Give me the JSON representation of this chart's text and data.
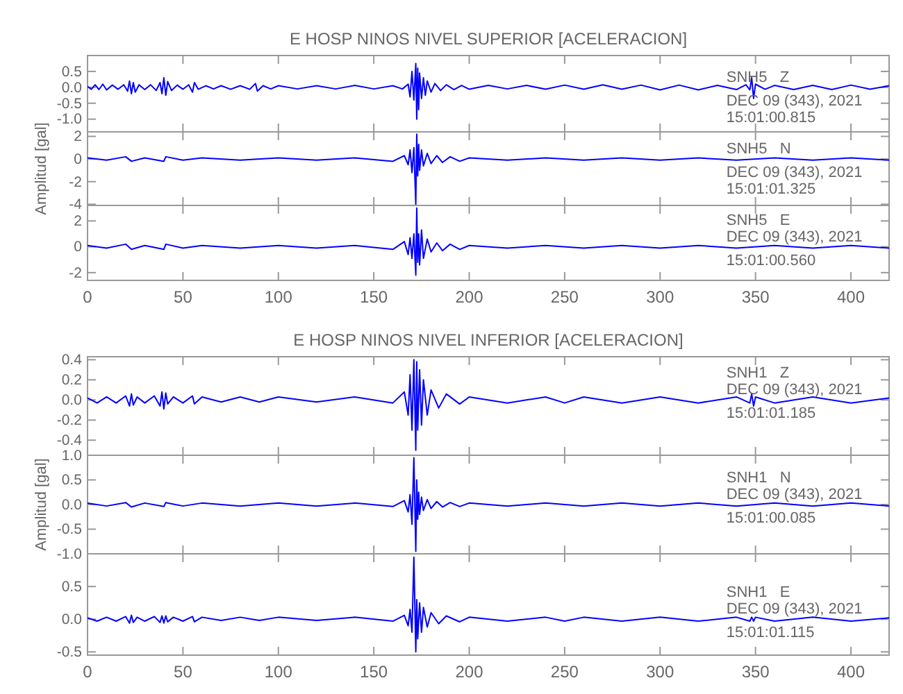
{
  "chart_data": [
    {
      "type": "line",
      "title": "E HOSP NINOS NIVEL SUPERIOR [ACELERACION]",
      "color": "#0000ff",
      "xlim": [
        0,
        420
      ],
      "xticks": [
        0,
        50,
        100,
        150,
        200,
        250,
        300,
        350,
        400
      ],
      "ylim": [
        -1.4,
        1.0
      ],
      "yticks": [
        {
          "value": -1.0,
          "label": "-1.0"
        },
        -0.5,
        {
          "value": 0,
          "label": "0.0"
        },
        0.5
      ],
      "tick_labels": "y",
      "annotations": [
        "SNH5   Z",
        "DEC 09 (343), 2021",
        "15:01:00.815"
      ],
      "x": [
        0,
        2,
        4,
        6,
        8,
        10,
        13,
        16,
        19,
        21,
        22,
        23,
        24,
        25,
        27,
        30,
        33,
        36,
        38,
        39,
        40,
        41,
        42,
        44,
        47,
        50,
        53,
        55,
        56,
        58,
        62,
        66,
        70,
        75,
        80,
        85,
        88,
        89,
        92,
        96,
        100,
        110,
        120,
        130,
        140,
        150,
        160,
        165,
        168,
        169,
        170,
        171,
        172,
        172.5,
        173,
        173.5,
        174,
        175,
        176,
        177,
        178,
        180,
        182,
        185,
        188,
        192,
        196,
        200,
        210,
        220,
        230,
        240,
        250,
        260,
        270,
        280,
        290,
        300,
        310,
        320,
        330,
        340,
        345,
        347,
        348,
        349,
        350,
        355,
        360,
        370,
        380,
        390,
        400,
        410,
        420
      ],
      "values": [
        0.03,
        -0.06,
        0.08,
        -0.07,
        0.1,
        -0.08,
        0.07,
        -0.06,
        0.08,
        -0.12,
        0.2,
        -0.2,
        0.15,
        -0.15,
        0.08,
        -0.07,
        0.08,
        -0.1,
        0.15,
        -0.2,
        0.3,
        -0.25,
        0.18,
        -0.1,
        0.07,
        -0.06,
        0.08,
        -0.15,
        0.15,
        -0.06,
        0.05,
        -0.05,
        0.05,
        -0.06,
        0.05,
        -0.06,
        0.12,
        -0.12,
        0.05,
        -0.05,
        0.05,
        -0.05,
        0.05,
        -0.05,
        0.06,
        -0.05,
        0.05,
        -0.05,
        0.1,
        -0.3,
        0.5,
        -0.4,
        0.75,
        -1.0,
        0.6,
        -0.7,
        0.45,
        -0.35,
        0.3,
        -0.25,
        0.2,
        -0.15,
        0.12,
        -0.1,
        0.08,
        -0.07,
        0.06,
        -0.06,
        0.06,
        -0.05,
        0.06,
        -0.06,
        0.07,
        -0.06,
        0.08,
        -0.06,
        0.07,
        -0.08,
        0.07,
        -0.08,
        0.06,
        -0.07,
        0.08,
        -0.08,
        0.3,
        -0.35,
        0.1,
        -0.06,
        0.06,
        -0.07,
        0.06,
        -0.07,
        0.07,
        -0.06,
        0.05
      ]
    },
    {
      "type": "line",
      "ylabel": "Amplitud [gal]",
      "color": "#0000ff",
      "xlim": [
        0,
        420
      ],
      "xticks": [
        0,
        50,
        100,
        150,
        200,
        250,
        300,
        350,
        400
      ],
      "ylim": [
        -4.1,
        2.4
      ],
      "yticks": [
        -4,
        -2,
        0,
        2
      ],
      "tick_labels": "y",
      "annotations": [
        "SNH5   N",
        "DEC 09 (343), 2021",
        "15:01:01.325"
      ],
      "x": [
        0,
        10,
        20,
        23,
        30,
        40,
        41,
        50,
        60,
        80,
        100,
        120,
        140,
        160,
        166,
        168,
        169,
        170,
        171,
        172,
        172.5,
        173,
        173.5,
        174,
        175,
        176,
        178,
        180,
        183,
        186,
        190,
        195,
        200,
        220,
        240,
        260,
        280,
        300,
        320,
        340,
        360,
        380,
        400,
        420
      ],
      "values": [
        0.1,
        -0.1,
        0.2,
        -0.2,
        0.1,
        -0.2,
        0.2,
        -0.1,
        0.1,
        -0.1,
        0.1,
        -0.1,
        0.1,
        -0.2,
        0.3,
        -0.5,
        0.8,
        -1.2,
        1.0,
        -4.0,
        2.2,
        -1.5,
        1.3,
        -1.0,
        0.8,
        -0.6,
        0.5,
        -0.4,
        0.3,
        -0.3,
        0.2,
        -0.2,
        0.1,
        -0.1,
        0.1,
        -0.1,
        0.1,
        -0.1,
        0.1,
        -0.1,
        0.1,
        -0.1,
        0.1,
        -0.1
      ]
    },
    {
      "type": "line",
      "color": "#0000ff",
      "xlim": [
        0,
        420
      ],
      "xticks": [
        0,
        50,
        100,
        150,
        200,
        250,
        300,
        350,
        400
      ],
      "ylim": [
        -2.6,
        3.2
      ],
      "yticks": [
        -2,
        0,
        2
      ],
      "annotations": [
        "SNH5   E",
        "DEC 09 (343), 2021",
        "15:01:00.560"
      ],
      "x": [
        0,
        10,
        20,
        23,
        30,
        40,
        41,
        50,
        60,
        80,
        100,
        120,
        140,
        160,
        166,
        168,
        169,
        170,
        171,
        172,
        172.5,
        173,
        173.5,
        174,
        175,
        176,
        178,
        180,
        183,
        186,
        190,
        195,
        200,
        220,
        240,
        260,
        280,
        300,
        320,
        340,
        360,
        380,
        400,
        420
      ],
      "values": [
        0.1,
        -0.1,
        0.2,
        -0.2,
        0.1,
        -0.2,
        0.2,
        -0.1,
        0.1,
        -0.1,
        0.1,
        -0.1,
        0.1,
        -0.2,
        0.4,
        -0.6,
        0.7,
        -0.9,
        1.0,
        -2.2,
        3.0,
        -1.2,
        1.0,
        -1.4,
        1.3,
        -0.9,
        0.6,
        -0.4,
        0.3,
        -0.3,
        0.2,
        -0.2,
        0.1,
        -0.1,
        0.1,
        -0.1,
        0.1,
        -0.1,
        0.1,
        -0.1,
        0.1,
        -0.1,
        0.1,
        -0.1
      ]
    },
    {
      "type": "line",
      "title": "E HOSP NINOS NIVEL INFERIOR [ACELERACION]",
      "color": "#0000ff",
      "xlim": [
        0,
        420
      ],
      "xticks": [
        0,
        50,
        100,
        150,
        200,
        250,
        300,
        350,
        400
      ],
      "ylim": [
        -0.55,
        0.43
      ],
      "yticks": [
        -0.4,
        -0.2,
        {
          "value": 0,
          "label": "0.0"
        },
        0.2,
        0.4
      ],
      "tick_labels": "y",
      "annotations": [
        "SNH1   Z",
        "DEC 09 (343), 2021",
        "15:01:01.185"
      ],
      "x": [
        0,
        5,
        10,
        15,
        20,
        22,
        23,
        24,
        26,
        30,
        35,
        38,
        39,
        40,
        41,
        42,
        45,
        50,
        55,
        56,
        60,
        70,
        80,
        90,
        100,
        120,
        140,
        160,
        166,
        168,
        169,
        170,
        171,
        172,
        172.5,
        173,
        174,
        175,
        176,
        178,
        180,
        184,
        188,
        195,
        200,
        220,
        240,
        250,
        260,
        280,
        300,
        320,
        340,
        347,
        348,
        349,
        350,
        360,
        380,
        400,
        420
      ],
      "values": [
        0.02,
        -0.03,
        0.03,
        -0.03,
        0.04,
        -0.06,
        0.06,
        -0.05,
        0.03,
        -0.03,
        0.04,
        -0.06,
        0.08,
        -0.09,
        0.07,
        -0.04,
        0.03,
        -0.03,
        0.04,
        -0.04,
        0.03,
        -0.02,
        0.03,
        -0.02,
        0.03,
        -0.02,
        0.03,
        -0.03,
        0.08,
        -0.15,
        0.25,
        -0.3,
        0.4,
        -0.5,
        0.38,
        -0.3,
        0.3,
        -0.25,
        0.2,
        -0.15,
        0.1,
        -0.08,
        0.06,
        -0.04,
        0.03,
        -0.03,
        0.03,
        -0.03,
        0.03,
        -0.03,
        0.03,
        -0.03,
        0.03,
        -0.03,
        0.06,
        -0.06,
        0.03,
        -0.03,
        0.03,
        -0.03,
        0.02
      ]
    },
    {
      "type": "line",
      "ylabel": "Amplitud [gal]",
      "color": "#0000ff",
      "xlim": [
        0,
        420
      ],
      "xticks": [
        0,
        50,
        100,
        150,
        200,
        250,
        300,
        350,
        400
      ],
      "ylim": [
        -1.0,
        1.0
      ],
      "yticks": [
        {
          "value": -1.0,
          "label": "-1.0"
        },
        -0.5,
        {
          "value": 0,
          "label": "0.0"
        },
        0.5,
        {
          "value": 1.0,
          "label": "1.0"
        }
      ],
      "tick_labels": "y",
      "annotations": [
        "SNH1   N",
        "DEC 09 (343), 2021",
        "15:01:00.085"
      ],
      "x": [
        0,
        10,
        20,
        23,
        30,
        40,
        41,
        50,
        60,
        80,
        100,
        120,
        140,
        160,
        166,
        168,
        169,
        170,
        171,
        172,
        172.5,
        173,
        173.5,
        174,
        175,
        176,
        178,
        180,
        183,
        186,
        190,
        195,
        200,
        220,
        240,
        260,
        280,
        300,
        320,
        340,
        360,
        380,
        400,
        420
      ],
      "values": [
        0.03,
        -0.03,
        0.04,
        -0.05,
        0.03,
        -0.04,
        0.04,
        -0.03,
        0.03,
        -0.03,
        0.03,
        -0.03,
        0.03,
        -0.04,
        0.08,
        -0.15,
        0.2,
        -0.4,
        0.95,
        -0.95,
        0.5,
        -0.3,
        0.25,
        -0.2,
        0.15,
        -0.12,
        0.1,
        -0.08,
        0.06,
        -0.05,
        0.04,
        -0.04,
        0.03,
        -0.03,
        0.03,
        -0.03,
        0.03,
        -0.03,
        0.03,
        -0.03,
        0.03,
        -0.03,
        0.03,
        -0.03
      ]
    },
    {
      "type": "line",
      "color": "#0000ff",
      "xlim": [
        0,
        420
      ],
      "xticks": [
        0,
        50,
        100,
        150,
        200,
        250,
        300,
        350,
        400
      ],
      "ylim": [
        -0.55,
        1.0
      ],
      "yticks": [
        -0.5,
        {
          "value": 0,
          "label": "0.0"
        },
        0.5
      ],
      "annotations": [
        "SNH1   E",
        "DEC 09 (343), 2021",
        "15:01:01.115"
      ],
      "x": [
        0,
        5,
        10,
        15,
        20,
        22,
        23,
        24,
        26,
        30,
        35,
        38,
        39,
        40,
        41,
        42,
        45,
        50,
        55,
        56,
        60,
        70,
        80,
        90,
        100,
        120,
        140,
        160,
        166,
        168,
        169,
        170,
        171,
        172,
        172.5,
        173,
        174,
        175,
        176,
        178,
        180,
        184,
        188,
        195,
        200,
        220,
        240,
        250,
        260,
        280,
        300,
        320,
        340,
        347,
        348,
        349,
        350,
        360,
        380,
        400,
        420
      ],
      "values": [
        0.02,
        -0.03,
        0.03,
        -0.03,
        0.04,
        -0.06,
        0.06,
        -0.05,
        0.03,
        -0.03,
        0.04,
        -0.05,
        0.05,
        -0.06,
        0.05,
        -0.04,
        0.03,
        -0.03,
        0.04,
        -0.04,
        0.03,
        -0.02,
        0.03,
        -0.02,
        0.03,
        -0.02,
        0.03,
        -0.03,
        0.06,
        -0.1,
        0.15,
        -0.2,
        0.95,
        -0.5,
        0.3,
        -0.3,
        0.25,
        -0.2,
        0.18,
        -0.12,
        0.1,
        -0.07,
        0.05,
        -0.04,
        0.03,
        -0.03,
        0.03,
        -0.03,
        0.03,
        -0.03,
        0.03,
        -0.03,
        0.03,
        -0.03,
        0.03,
        -0.03,
        0.03,
        -0.03,
        0.03,
        -0.03,
        0.02
      ]
    }
  ]
}
